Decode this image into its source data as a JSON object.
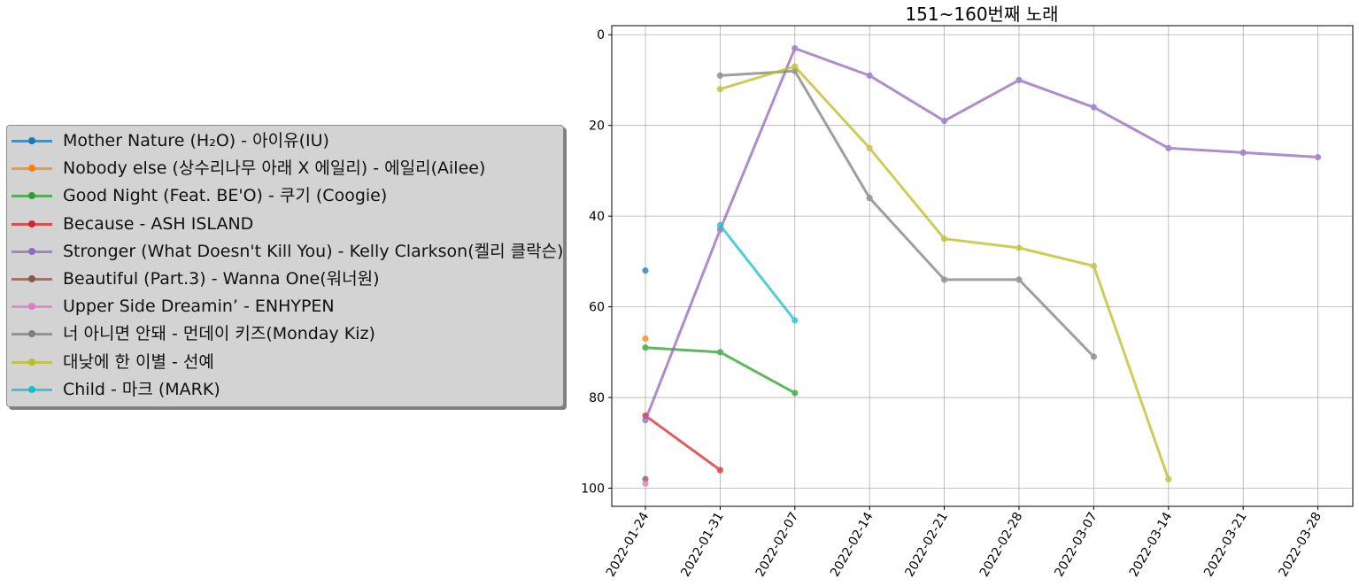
{
  "chart_data": {
    "type": "line",
    "title": "151~160번째 노래",
    "xlabel": "",
    "ylabel": "",
    "ylim": [
      104,
      -2
    ],
    "y_inverted": true,
    "yticks": [
      0,
      20,
      40,
      60,
      80,
      100
    ],
    "grid": true,
    "legend_position": "left-center-outside",
    "categories": [
      "2022-01-24",
      "2022-01-31",
      "2022-02-07",
      "2022-02-14",
      "2022-02-21",
      "2022-02-28",
      "2022-03-07",
      "2022-03-14",
      "2022-03-21",
      "2022-03-28"
    ],
    "series": [
      {
        "name": "Mother Nature (H₂O) - 아이유(IU)",
        "color": "#1f77b4",
        "values": [
          52,
          null,
          null,
          null,
          null,
          null,
          null,
          null,
          null,
          null
        ]
      },
      {
        "name": "Nobody else (상수리나무 아래 X 에일리) - 에일리(Ailee)",
        "color": "#ff7f0e",
        "values": [
          67,
          null,
          null,
          null,
          null,
          null,
          null,
          null,
          null,
          null
        ]
      },
      {
        "name": "Good Night (Feat. BE'O) - 쿠기 (Coogie)",
        "color": "#2ca02c",
        "values": [
          69,
          70,
          79,
          null,
          null,
          null,
          null,
          null,
          null,
          null
        ]
      },
      {
        "name": "Because - ASH ISLAND",
        "color": "#d62728",
        "values": [
          84,
          96,
          null,
          null,
          null,
          null,
          null,
          null,
          null,
          null
        ]
      },
      {
        "name": "Stronger (What Doesn't Kill You) - Kelly Clarkson(켈리 클락슨)",
        "color": "#9467bd",
        "values": [
          85,
          43,
          3,
          9,
          19,
          10,
          16,
          25,
          26,
          27
        ]
      },
      {
        "name": "Beautiful (Part.3) - Wanna One(워너원)",
        "color": "#8c564b",
        "values": [
          98,
          null,
          null,
          null,
          null,
          null,
          null,
          null,
          null,
          null
        ]
      },
      {
        "name": "Upper Side Dreamin’ - ENHYPEN",
        "color": "#e377c2",
        "values": [
          99,
          null,
          null,
          null,
          null,
          null,
          null,
          null,
          null,
          null
        ]
      },
      {
        "name": "너 아니면 안돼 - 먼데이 키즈(Monday Kiz)",
        "color": "#7f7f7f",
        "values": [
          null,
          9,
          8,
          36,
          54,
          54,
          71,
          null,
          null,
          null
        ]
      },
      {
        "name": "대낮에 한 이별 - 선예",
        "color": "#bcbd22",
        "values": [
          null,
          12,
          7,
          25,
          45,
          47,
          51,
          98,
          null,
          null
        ]
      },
      {
        "name": "Child - 마크 (MARK)",
        "color": "#17becf",
        "values": [
          null,
          42,
          63,
          null,
          null,
          null,
          null,
          null,
          null,
          null
        ]
      }
    ]
  }
}
